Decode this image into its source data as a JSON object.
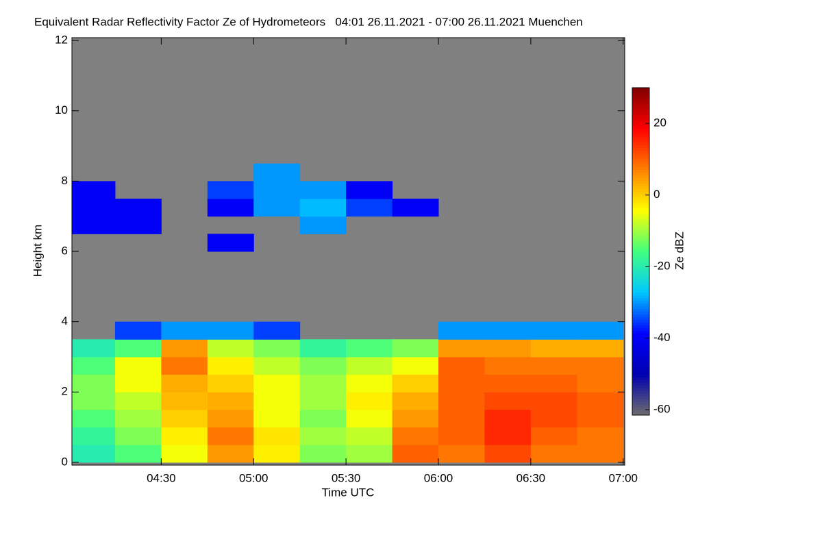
{
  "chart_data": {
    "type": "heatmap",
    "title": "Equivalent Radar Reflectivity Factor Ze of Hydrometeors   04:01 26.11.2021 - 07:00 26.11.2021 Muenchen",
    "xlabel": "Time UTC",
    "ylabel": "Height km",
    "zlabel": "Ze dBZ",
    "xlim": [
      1,
      180.5
    ],
    "xticks": [
      {
        "value": 30,
        "label": "04:30"
      },
      {
        "value": 60,
        "label": "05:00"
      },
      {
        "value": 90,
        "label": "05:30"
      },
      {
        "value": 120,
        "label": "06:00"
      },
      {
        "value": 150,
        "label": "06:30"
      },
      {
        "value": 180,
        "label": "07:00"
      }
    ],
    "ylim": [
      -0.08,
      12.08
    ],
    "yticks": [
      0,
      2,
      4,
      6,
      8,
      10,
      12
    ],
    "zlim": [
      -61.5,
      30
    ],
    "zticks": [
      -60,
      -40,
      -20,
      0,
      20
    ],
    "background": "#808080",
    "colors": [
      "#6e6e6e",
      "#0000b0",
      "#0000ff",
      "#00c8ff",
      "#40ff80",
      "#ffff00",
      "#ff8000",
      "#ff0000",
      "#800000"
    ],
    "x_edges": [
      1,
      15,
      30,
      45,
      60,
      75,
      90,
      105,
      120,
      135,
      150,
      165,
      180
    ],
    "y_edges": [
      0,
      0.5,
      1,
      1.5,
      2,
      2.5,
      3,
      3.5,
      4,
      4.5,
      5,
      5.5,
      6,
      6.5,
      7,
      7.5,
      8,
      8.5
    ],
    "z": [
      [
        -20,
        -15,
        -5,
        5,
        -3,
        -12,
        -10,
        10,
        8,
        12,
        8,
        8
      ],
      [
        -18,
        -12,
        -3,
        8,
        -2,
        -10,
        -8,
        8,
        10,
        15,
        10,
        8
      ],
      [
        -15,
        -10,
        0,
        5,
        -5,
        -12,
        -5,
        5,
        10,
        15,
        12,
        10
      ],
      [
        -12,
        -8,
        2,
        3,
        -5,
        -10,
        -3,
        3,
        10,
        12,
        12,
        10
      ],
      [
        -12,
        -5,
        3,
        0,
        -5,
        -10,
        -5,
        0,
        10,
        10,
        10,
        8
      ],
      [
        -15,
        -5,
        8,
        -3,
        -8,
        -12,
        -8,
        -5,
        10,
        8,
        8,
        8
      ],
      [
        -20,
        -15,
        5,
        -8,
        -12,
        -18,
        -15,
        -12,
        5,
        5,
        3,
        3
      ],
      [
        null,
        -35,
        -30,
        -30,
        -35,
        null,
        null,
        null,
        -30,
        -30,
        -30,
        -30
      ],
      [
        null,
        null,
        null,
        null,
        null,
        null,
        null,
        null,
        null,
        null,
        null,
        null
      ],
      [
        null,
        null,
        null,
        null,
        null,
        null,
        null,
        null,
        null,
        null,
        null,
        null
      ],
      [
        null,
        null,
        null,
        null,
        null,
        null,
        null,
        null,
        null,
        null,
        null,
        null
      ],
      [
        null,
        null,
        null,
        null,
        null,
        null,
        null,
        null,
        null,
        null,
        null,
        null
      ],
      [
        null,
        null,
        null,
        -40,
        null,
        null,
        null,
        null,
        null,
        null,
        null,
        null
      ],
      [
        -40,
        -40,
        null,
        null,
        null,
        -30,
        null,
        null,
        null,
        null,
        null,
        null
      ],
      [
        -40,
        -40,
        null,
        -40,
        -30,
        -28,
        -35,
        -40,
        null,
        null,
        null,
        null
      ],
      [
        -40,
        null,
        null,
        -35,
        -30,
        -30,
        -40,
        null,
        null,
        null,
        null,
        null
      ],
      [
        null,
        null,
        null,
        null,
        -30,
        null,
        null,
        null,
        null,
        null,
        null,
        null
      ]
    ]
  }
}
